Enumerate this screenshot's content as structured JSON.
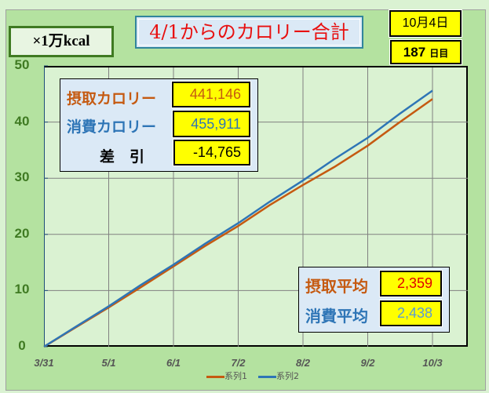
{
  "unit_label": "×1万kcal",
  "title": "4/1からのカロリー合計",
  "date": "10月4日",
  "day_count": "187",
  "day_suffix": "日目",
  "summary": {
    "intake_label": "摂取カロリー",
    "intake_value": "441,146",
    "burn_label": "消費カロリー",
    "burn_value": "455,911",
    "diff_label": "差　引",
    "diff_value": "-14,765"
  },
  "averages": {
    "intake_label": "摂取平均",
    "intake_value": "2,359",
    "burn_label": "消費平均",
    "burn_value": "2,438"
  },
  "colors": {
    "series1": "#c55a11",
    "series2": "#2e75b6",
    "red": "#e00000"
  },
  "chart_data": {
    "type": "line",
    "title": "4/1からのカロリー合計",
    "ylabel": "×1万kcal",
    "ylim": [
      0,
      50
    ],
    "yticks": [
      "0",
      "10",
      "20",
      "30",
      "40",
      "50"
    ],
    "xticks": [
      "3/31",
      "5/1",
      "6/1",
      "7/2",
      "8/2",
      "9/2",
      "10/3"
    ],
    "xlim_days": [
      0,
      186
    ],
    "x_days": [
      0,
      15,
      31,
      46,
      62,
      77,
      93,
      108,
      124,
      139,
      155,
      170,
      186
    ],
    "series": [
      {
        "name": "系列1",
        "values": [
          0,
          3.4,
          7.0,
          10.5,
          14.3,
          17.9,
          21.5,
          25.2,
          28.8,
          32.0,
          35.8,
          39.9,
          44.1
        ]
      },
      {
        "name": "系列2",
        "values": [
          0,
          3.5,
          7.2,
          10.9,
          14.6,
          18.3,
          22.0,
          25.8,
          29.6,
          33.4,
          37.2,
          41.4,
          45.6
        ]
      }
    ],
    "legend": "bottom",
    "grid": true
  }
}
